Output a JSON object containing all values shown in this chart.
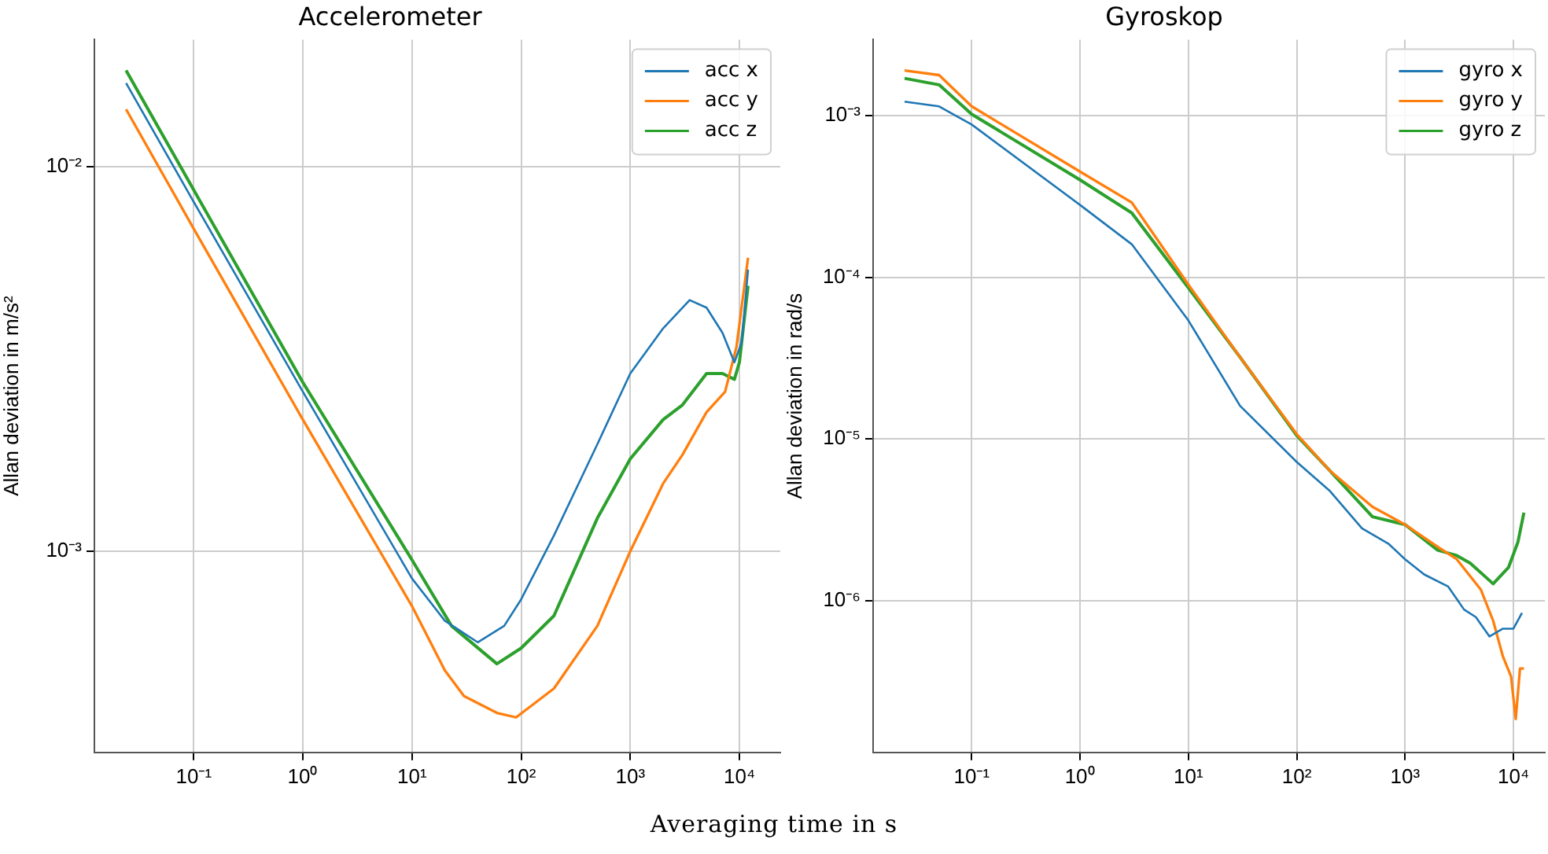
{
  "chart_data": [
    {
      "type": "line",
      "title": "Accelerometer",
      "xlabel": "Averaging time in s",
      "ylabel": "Allan deviation in m/s²",
      "log": "xy",
      "grid": true,
      "legend": "top right",
      "xlim": [
        0.0123,
        23700
      ],
      "ylim": [
        0.0003,
        0.0214
      ],
      "xticks": [
        {
          "value": 0.1,
          "label": "10⁻¹"
        },
        {
          "value": 1,
          "label": "10⁰"
        },
        {
          "value": 10,
          "label": "10¹"
        },
        {
          "value": 100,
          "label": "10²"
        },
        {
          "value": 1000,
          "label": "10³"
        },
        {
          "value": 10000,
          "label": "10⁴"
        }
      ],
      "yticks": [
        {
          "value": 0.001,
          "label": "10⁻³"
        },
        {
          "value": 0.01,
          "label": "10⁻²"
        }
      ],
      "series": [
        {
          "name": "acc x",
          "color": "#1f77b4",
          "x": [
            0.024,
            0.1,
            1,
            10,
            20,
            40,
            70,
            100,
            200,
            500,
            1000,
            2000,
            3500,
            5000,
            7000,
            9000,
            10500,
            12000
          ],
          "values": [
            0.0165,
            0.0081,
            0.0026,
            0.00085,
            0.00066,
            0.00058,
            0.00064,
            0.00075,
            0.0011,
            0.0019,
            0.0029,
            0.0038,
            0.0045,
            0.0043,
            0.0037,
            0.0031,
            0.0035,
            0.0054
          ]
        },
        {
          "name": "acc y",
          "color": "#ff7f0e",
          "x": [
            0.024,
            0.1,
            1,
            10,
            20,
            30,
            60,
            90,
            200,
            500,
            1000,
            2000,
            3000,
            5000,
            7400,
            9400,
            12000
          ],
          "values": [
            0.0141,
            0.0069,
            0.0022,
            0.00072,
            0.00049,
            0.00042,
            0.00038,
            0.00037,
            0.00044,
            0.00064,
            0.001,
            0.0015,
            0.00178,
            0.0023,
            0.0026,
            0.0034,
            0.0058
          ]
        },
        {
          "name": "acc z",
          "color": "#2ca02c",
          "x": [
            0.024,
            0.1,
            1,
            10,
            23,
            60,
            100,
            200,
            500,
            1000,
            2000,
            3000,
            5000,
            7000,
            9000,
            10000,
            12000
          ],
          "values": [
            0.0178,
            0.0087,
            0.00275,
            0.00095,
            0.00064,
            0.00051,
            0.00056,
            0.00068,
            0.00122,
            0.00174,
            0.0022,
            0.0024,
            0.0029,
            0.0029,
            0.0028,
            0.0031,
            0.0049
          ]
        }
      ]
    },
    {
      "type": "line",
      "title": "Gyroskop",
      "ylabel": "Allan deviation in rad/s",
      "log": "xy",
      "grid": true,
      "legend": "top right",
      "xlim": [
        0.0123,
        19500
      ],
      "ylim": [
        1.15e-07,
        0.00295
      ],
      "xticks": [
        {
          "value": 0.1,
          "label": "10⁻¹"
        },
        {
          "value": 1,
          "label": "10⁰"
        },
        {
          "value": 10,
          "label": "10¹"
        },
        {
          "value": 100,
          "label": "10²"
        },
        {
          "value": 1000,
          "label": "10³"
        },
        {
          "value": 10000,
          "label": "10⁴"
        }
      ],
      "yticks": [
        {
          "value": 1e-06,
          "label": "10⁻⁶"
        },
        {
          "value": 1e-05,
          "label": "10⁻⁵"
        },
        {
          "value": 0.0001,
          "label": "10⁻⁴"
        },
        {
          "value": 0.001,
          "label": "10⁻³"
        }
      ],
      "series": [
        {
          "name": "gyro x",
          "color": "#1f77b4",
          "x": [
            0.024,
            0.05,
            0.1,
            1,
            3,
            10,
            30,
            100,
            200,
            400,
            700,
            1000,
            1500,
            2500,
            3500,
            4500,
            6000,
            8000,
            10000,
            12000
          ],
          "values": [
            0.00122,
            0.00114,
            0.00088,
            0.00028,
            0.00016,
            5.4e-05,
            1.6e-05,
            7.2e-06,
            4.8e-06,
            2.8e-06,
            2.25e-06,
            1.8e-06,
            1.45e-06,
            1.22e-06,
            8.8e-07,
            7.9e-07,
            6e-07,
            6.7e-07,
            6.7e-07,
            8.4e-07
          ]
        },
        {
          "name": "gyro y",
          "color": "#ff7f0e",
          "x": [
            0.024,
            0.05,
            0.1,
            1,
            3,
            10,
            30,
            100,
            200,
            500,
            1000,
            2000,
            3000,
            5000,
            6500,
            8000,
            9500,
            10500,
            11500,
            12500
          ],
          "values": [
            0.0019,
            0.00178,
            0.00114,
            0.00045,
            0.00029,
            9e-05,
            3.2e-05,
            1.07e-05,
            6.4e-06,
            3.8e-06,
            2.95e-06,
            2.15e-06,
            1.8e-06,
            1.17e-06,
            7.5e-07,
            4.5e-07,
            3.4e-07,
            1.85e-07,
            3.8e-07,
            3.8e-07
          ]
        },
        {
          "name": "gyro z",
          "color": "#2ca02c",
          "x": [
            0.024,
            0.05,
            0.1,
            1,
            3,
            10,
            30,
            100,
            200,
            500,
            1000,
            2000,
            3000,
            4000,
            6500,
            9000,
            11000,
            12500
          ],
          "values": [
            0.0017,
            0.00155,
            0.00102,
            0.0004,
            0.00025,
            8.6e-05,
            3.2e-05,
            1.05e-05,
            6.4e-06,
            3.3e-06,
            2.95e-06,
            2.05e-06,
            1.9e-06,
            1.7e-06,
            1.27e-06,
            1.6e-06,
            2.3e-06,
            3.5e-06
          ]
        }
      ]
    }
  ]
}
